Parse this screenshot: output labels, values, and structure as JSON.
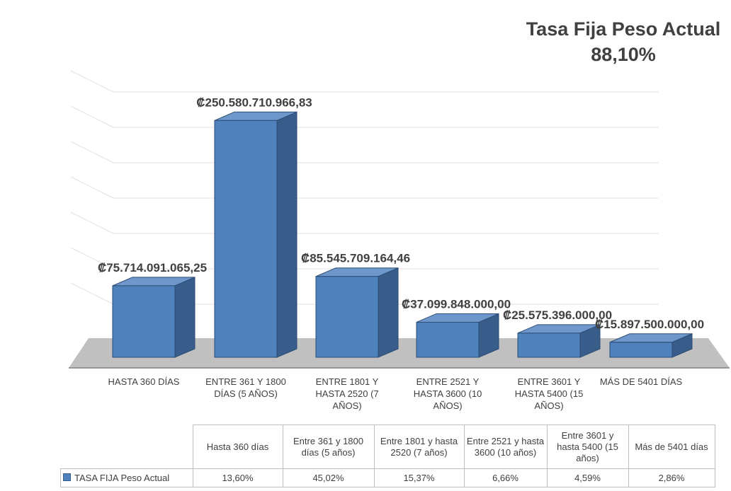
{
  "chart_data": {
    "type": "bar3d",
    "title": "Tasa Fija Peso Actual",
    "subtitle": "88,10%",
    "categories": [
      "HASTA 360 DÍAS",
      "ENTRE 361 Y 1800 DÍAS (5 AÑOS)",
      "ENTRE 1801 Y HASTA 2520 (7 AÑOS)",
      "ENTRE  2521 Y HASTA 3600 (10 AÑOS)",
      "ENTRE 3601 Y HASTA 5400 (15 AÑOS)",
      "MÁS DE 5401 DÍAS"
    ],
    "series": [
      {
        "name": "TASA FIJA Peso Actual",
        "color": "#4f81bd",
        "values": [
          75714091065.25,
          250580710966.83,
          85545709164.46,
          37099848000.0,
          25575396000.0,
          15897500000.0
        ],
        "value_labels": [
          "₡75.714.091.065,25",
          "₡250.580.710.966,83",
          "₡85.545.709.164,46",
          "₡37.099.848.000,00",
          "₡25.575.396.000,00",
          "₡15.897.500.000,00"
        ]
      }
    ],
    "ylim": [
      0,
      280000000000
    ],
    "table": {
      "headers": [
        "Hasta 360 días",
        "Entre 361 y 1800 días (5 años)",
        "Entre 1801 y hasta 2520 (7 años)",
        "Entre  2521 y hasta 3600 (10 años)",
        "Entre 3601 y hasta 5400 (15 años)",
        "Más de 5401 días"
      ],
      "values": [
        13.6,
        45.02,
        15.37,
        6.66,
        4.59,
        2.86
      ],
      "value_labels": [
        "13,60%",
        "45,02%",
        "15,37%",
        "6,66%",
        "4,59%",
        "2,86%"
      ]
    }
  }
}
